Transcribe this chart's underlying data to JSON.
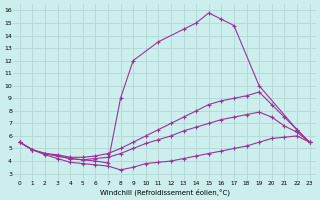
{
  "background_color": "#cceeed",
  "grid_color": "#aad4d2",
  "line_color": "#993399",
  "xlabel": "Windchill (Refroidissement éolien,°C)",
  "xlim": [
    -0.5,
    23.5
  ],
  "ylim": [
    2.5,
    16.5
  ],
  "x_ticks": [
    0,
    1,
    2,
    3,
    4,
    5,
    6,
    7,
    8,
    9,
    10,
    11,
    12,
    13,
    14,
    15,
    16,
    17,
    18,
    19,
    20,
    21,
    22,
    23
  ],
  "y_ticks": [
    3,
    4,
    5,
    6,
    7,
    8,
    9,
    10,
    11,
    12,
    13,
    14,
    15,
    16
  ],
  "curve1_x": [
    0,
    1,
    2,
    3,
    4,
    5,
    6,
    7,
    8,
    9,
    10,
    11,
    12,
    13,
    14,
    15,
    16,
    17,
    18,
    19,
    20,
    21,
    22,
    23
  ],
  "curve1_y": [
    5.5,
    4.9,
    4.6,
    4.5,
    4.3,
    4.3,
    4.4,
    4.6,
    5.0,
    5.5,
    6.0,
    6.5,
    7.0,
    7.5,
    8.0,
    8.5,
    8.8,
    9.0,
    9.2,
    9.5,
    8.5,
    7.5,
    6.5,
    5.5
  ],
  "curve2_x": [
    0,
    1,
    2,
    3,
    4,
    5,
    6,
    7,
    8,
    9,
    10,
    11,
    12,
    13,
    14,
    15,
    16,
    17,
    18,
    19,
    20,
    21,
    22,
    23
  ],
  "curve2_y": [
    5.5,
    4.9,
    4.6,
    4.4,
    4.2,
    4.1,
    4.2,
    4.3,
    4.6,
    5.0,
    5.4,
    5.7,
    6.0,
    6.4,
    6.7,
    7.0,
    7.3,
    7.5,
    7.7,
    7.9,
    7.5,
    6.8,
    6.3,
    5.5
  ],
  "curve3_x": [
    0,
    1,
    2,
    3,
    4,
    5,
    6,
    7,
    8,
    9,
    11,
    13,
    14,
    15,
    16,
    17,
    19,
    22,
    23
  ],
  "curve3_y": [
    5.5,
    4.9,
    4.6,
    4.4,
    4.2,
    4.1,
    4.0,
    3.85,
    9.0,
    12.0,
    13.5,
    14.5,
    15.0,
    15.8,
    15.3,
    14.8,
    10.0,
    6.5,
    5.5
  ],
  "curve4_x": [
    0,
    1,
    2,
    3,
    4,
    5,
    6,
    7,
    8,
    9,
    10,
    11,
    12,
    13,
    14,
    15,
    16,
    17,
    18,
    19,
    20,
    21,
    22,
    23
  ],
  "curve4_y": [
    5.5,
    4.9,
    4.5,
    4.2,
    3.9,
    3.8,
    3.7,
    3.6,
    3.3,
    3.5,
    3.8,
    3.9,
    4.0,
    4.2,
    4.4,
    4.6,
    4.8,
    5.0,
    5.2,
    5.5,
    5.8,
    5.9,
    6.0,
    5.5
  ]
}
